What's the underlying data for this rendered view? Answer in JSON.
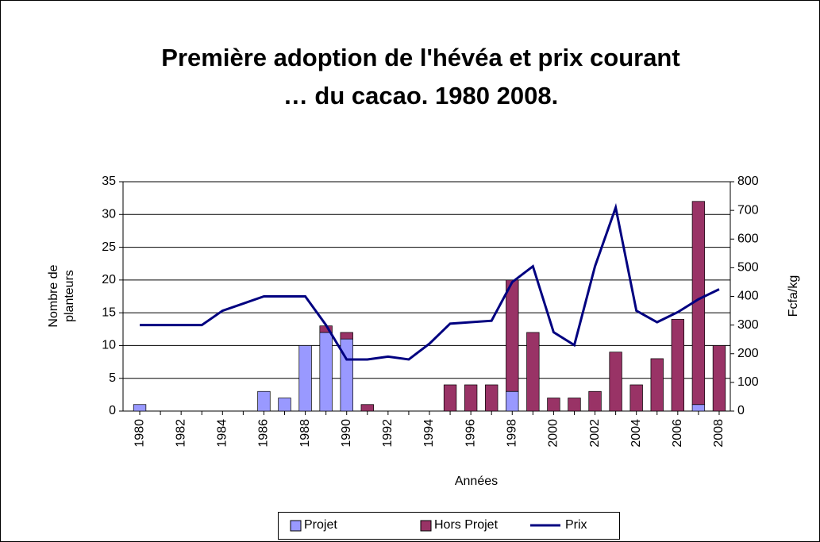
{
  "chart_data": {
    "type": "bar_line",
    "title": [
      "Première adoption de l'hévéa et prix courant",
      "… du cacao. 1980 2008."
    ],
    "ylabel": [
      "Nombre de",
      "planteurs"
    ],
    "y2label": "Fcfa/kg",
    "xlabel": "Années",
    "categories": [
      "1980",
      null,
      "1982",
      null,
      "1984",
      null,
      "1986",
      null,
      "1988",
      null,
      "1990",
      null,
      "1992",
      null,
      "1994",
      null,
      "1996",
      null,
      "1998",
      null,
      "2000",
      null,
      "2002",
      null,
      "2004",
      null,
      "2006",
      null,
      "2008"
    ],
    "series": [
      {
        "name": "Projet",
        "type": "bar",
        "color": "#9999ff",
        "values": [
          1,
          0,
          0,
          0,
          0,
          0,
          3,
          2,
          10,
          12,
          11,
          0,
          0,
          0,
          0,
          0,
          0,
          0,
          3,
          0,
          0,
          0,
          0,
          0,
          0,
          0,
          0,
          1,
          0
        ]
      },
      {
        "name": "Hors Projet",
        "type": "bar",
        "color": "#993366",
        "values": [
          0,
          0,
          0,
          0,
          0,
          0,
          0,
          0,
          0,
          1,
          1,
          1,
          0,
          0,
          0,
          4,
          4,
          4,
          17,
          12,
          2,
          2,
          3,
          9,
          4,
          8,
          14,
          31,
          10
        ]
      },
      {
        "name": "Prix",
        "type": "line",
        "axis": "y2",
        "color": "#000080",
        "values": [
          300,
          300,
          300,
          300,
          350,
          375,
          400,
          400,
          400,
          300,
          180,
          180,
          190,
          180,
          235,
          305,
          310,
          315,
          450,
          505,
          275,
          230,
          505,
          710,
          350,
          310,
          345,
          390,
          425
        ]
      }
    ],
    "stacked": true,
    "ylim": [
      0,
      35
    ],
    "yticks": [
      0,
      5,
      10,
      15,
      20,
      25,
      30,
      35
    ],
    "y2lim": [
      0,
      800
    ],
    "y2ticks": [
      0,
      100,
      200,
      300,
      400,
      500,
      600,
      700,
      800
    ],
    "grid": true,
    "legend": "bottom"
  }
}
